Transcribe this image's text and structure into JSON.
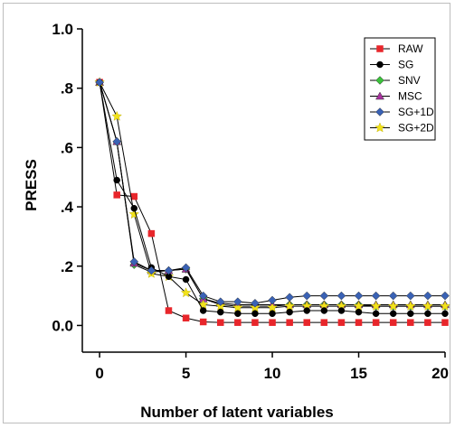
{
  "chart_data": {
    "type": "line",
    "title": "",
    "xlabel": "Number of latent variables",
    "ylabel": "PRESS",
    "xlim": [
      -1,
      20
    ],
    "ylim": [
      -0.09,
      1.0
    ],
    "x_ticks": [
      0,
      5,
      10,
      15,
      20
    ],
    "x_tick_labels": [
      "0",
      "5",
      "10",
      "15",
      "20"
    ],
    "y_ticks": [
      0.0,
      0.2,
      0.4,
      0.6,
      0.8,
      1.0
    ],
    "y_tick_labels": [
      "0.0",
      ".2",
      ".4",
      ".6",
      ".8",
      "1.0"
    ],
    "grid": false,
    "legend_position": "top-right",
    "x": [
      0,
      1,
      2,
      3,
      4,
      5,
      6,
      7,
      8,
      9,
      10,
      11,
      12,
      13,
      14,
      15,
      16,
      17,
      18,
      19,
      20
    ],
    "series": [
      {
        "name": "RAW",
        "color": "#e8262b",
        "marker": "square",
        "values": [
          0.82,
          0.44,
          0.435,
          0.31,
          0.05,
          0.025,
          0.012,
          0.01,
          0.01,
          0.01,
          0.01,
          0.01,
          0.01,
          0.01,
          0.01,
          0.01,
          0.01,
          0.01,
          0.01,
          0.01,
          0.01
        ]
      },
      {
        "name": "SG",
        "color": "#000000",
        "marker": "circle",
        "values": [
          0.82,
          0.49,
          0.395,
          0.195,
          0.165,
          0.155,
          0.05,
          0.045,
          0.04,
          0.04,
          0.04,
          0.045,
          0.05,
          0.05,
          0.05,
          0.045,
          0.04,
          0.04,
          0.04,
          0.04,
          0.04
        ]
      },
      {
        "name": "SNV",
        "color": "#3cc23c",
        "marker": "diamond",
        "values": [
          0.82,
          0.62,
          0.205,
          0.18,
          0.185,
          0.19,
          0.09,
          0.07,
          0.065,
          0.065,
          0.065,
          0.07,
          0.07,
          0.07,
          0.07,
          0.07,
          0.065,
          0.065,
          0.065,
          0.065,
          0.065
        ]
      },
      {
        "name": "MSC",
        "color": "#a8329f",
        "marker": "triangle",
        "values": [
          0.82,
          0.62,
          0.21,
          0.185,
          0.185,
          0.19,
          0.09,
          0.075,
          0.07,
          0.07,
          0.07,
          0.07,
          0.07,
          0.07,
          0.07,
          0.07,
          0.07,
          0.07,
          0.07,
          0.07,
          0.07
        ]
      },
      {
        "name": "SG+1D",
        "color": "#3a62b5",
        "marker": "diamond",
        "values": [
          0.82,
          0.62,
          0.215,
          0.185,
          0.185,
          0.195,
          0.1,
          0.08,
          0.08,
          0.075,
          0.085,
          0.095,
          0.1,
          0.1,
          0.1,
          0.1,
          0.1,
          0.1,
          0.1,
          0.1,
          0.1
        ]
      },
      {
        "name": "SG+2D",
        "color": "#f2e21a",
        "marker": "star",
        "values": [
          0.82,
          0.705,
          0.375,
          0.175,
          0.165,
          0.11,
          0.07,
          0.065,
          0.06,
          0.06,
          0.06,
          0.065,
          0.065,
          0.065,
          0.065,
          0.065,
          0.065,
          0.065,
          0.065,
          0.065,
          0.065
        ]
      }
    ]
  }
}
